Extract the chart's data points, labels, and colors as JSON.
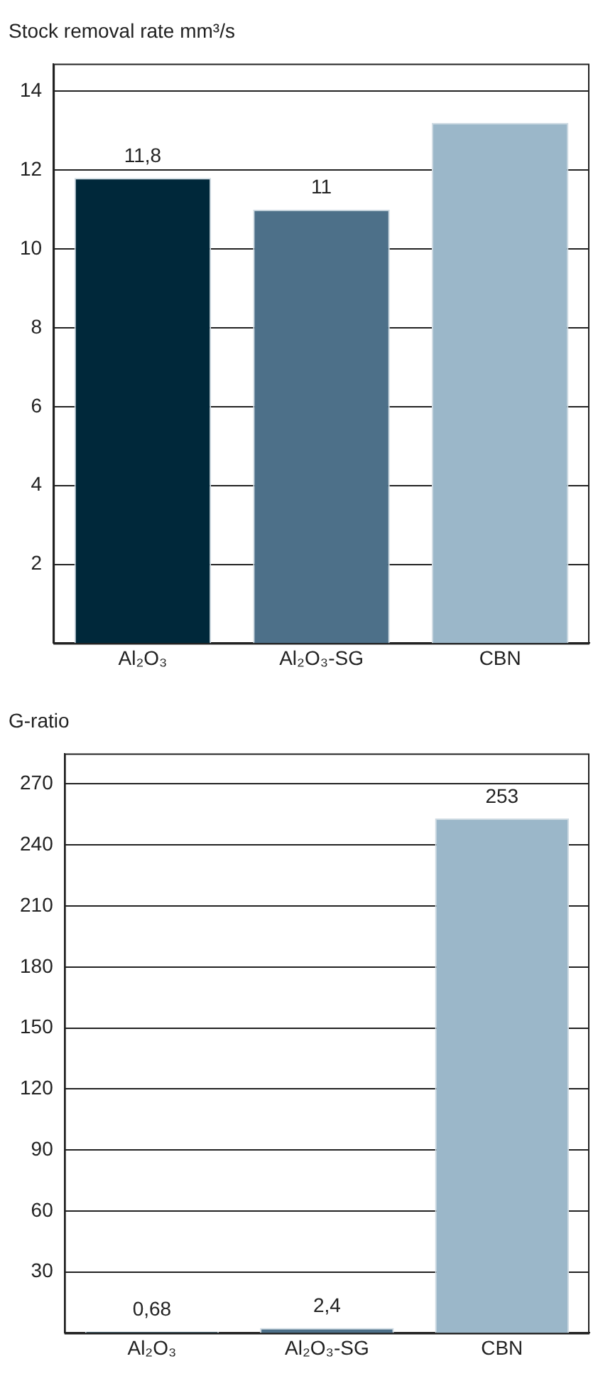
{
  "chart_data": [
    {
      "type": "bar",
      "title": "Stock removal rate mm³/s",
      "categories": [
        "Al₂O₃",
        "Al₂O₃-SG",
        "CBN"
      ],
      "values": [
        11.8,
        11,
        13.2
      ],
      "colors": [
        "#00283a",
        "#4d7089",
        "#9bb7c9"
      ],
      "value_labels": [
        "11,8",
        "11",
        null
      ],
      "ylim": [
        0,
        14.7
      ],
      "yticks": [
        2,
        4,
        6,
        8,
        10,
        12,
        14
      ],
      "grid": "y"
    },
    {
      "type": "bar",
      "title": "G-ratio",
      "categories": [
        "Al₂O₃",
        "Al₂O₃-SG",
        "CBN"
      ],
      "values": [
        0.68,
        2.4,
        253
      ],
      "colors": [
        "#00283a",
        "#4d7089",
        "#9bb7c9"
      ],
      "value_labels": [
        "0,68",
        "2,4",
        "253"
      ],
      "ylim": [
        0,
        285
      ],
      "yticks": [
        30,
        60,
        90,
        120,
        150,
        180,
        210,
        240,
        270
      ],
      "grid": "y"
    }
  ]
}
